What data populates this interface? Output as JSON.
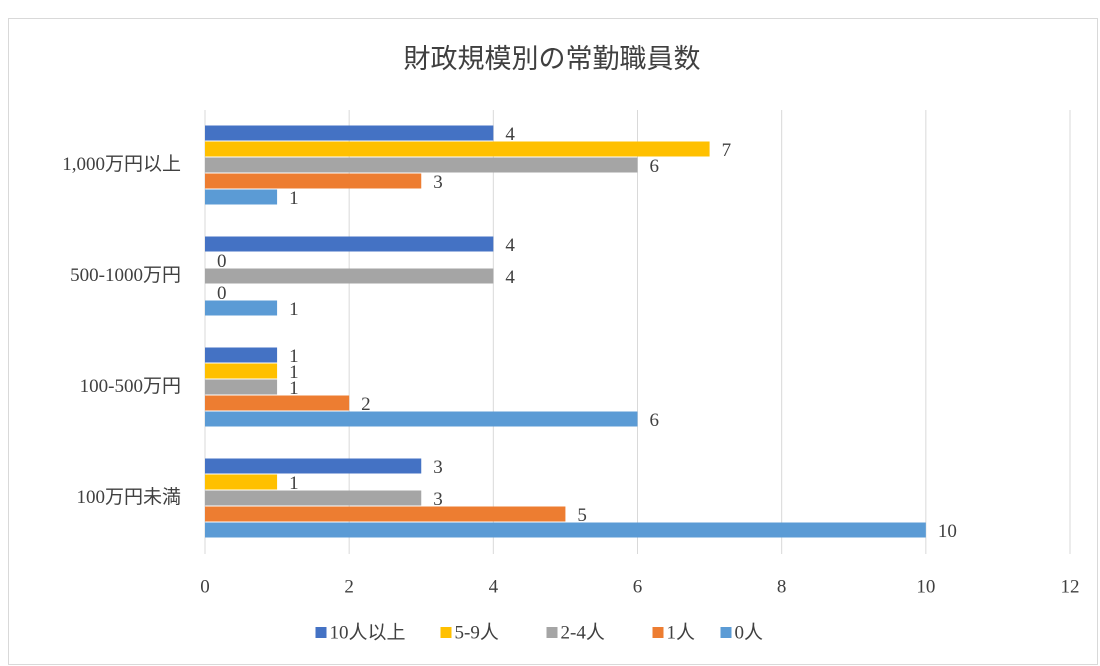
{
  "chart_data": {
    "type": "hbar",
    "title": "財政規模別の常勤職員数",
    "categories": [
      "1,000万円以上",
      "500-1000万円",
      "100-500万円",
      "100万円未満"
    ],
    "series": [
      {
        "name": "10人以上",
        "color": "#4472c4",
        "values": [
          4,
          4,
          1,
          3
        ]
      },
      {
        "name": "5-9人",
        "color": "#ffc000",
        "values": [
          7,
          0,
          1,
          1
        ]
      },
      {
        "name": "2-4人",
        "color": "#a5a5a5",
        "values": [
          6,
          4,
          1,
          3
        ]
      },
      {
        "name": "1人",
        "color": "#ed7d31",
        "values": [
          3,
          0,
          2,
          5
        ]
      },
      {
        "name": "0人",
        "color": "#5b9bd5",
        "values": [
          1,
          1,
          6,
          10
        ]
      }
    ],
    "xlim": [
      0,
      12
    ],
    "xticks": [
      0,
      2,
      4,
      6,
      8,
      10,
      12
    ],
    "grid": true,
    "legend": "bottom"
  }
}
